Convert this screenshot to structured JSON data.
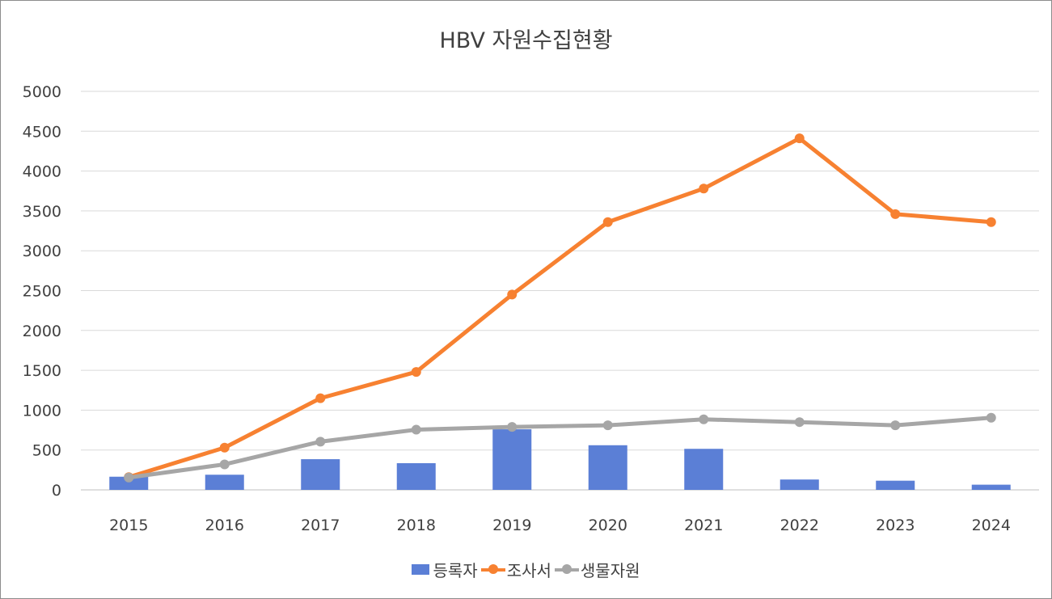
{
  "chart_data": {
    "type": "bar+line",
    "title": "HBV 자원수집현황",
    "categories": [
      "2015",
      "2016",
      "2017",
      "2018",
      "2019",
      "2020",
      "2021",
      "2022",
      "2023",
      "2024"
    ],
    "y_ticks": [
      "0",
      "500",
      "1000",
      "1500",
      "2000",
      "2500",
      "3000",
      "3500",
      "4000",
      "4500",
      "5000"
    ],
    "ylim": [
      0,
      5000
    ],
    "grid": true,
    "legend_position": "bottom",
    "series": [
      {
        "name": "등록자",
        "type": "bar",
        "color": "#5b7fd6",
        "values": [
          165,
          190,
          385,
          335,
          760,
          560,
          515,
          130,
          115,
          65
        ]
      },
      {
        "name": "조사서",
        "type": "line",
        "color": "#f78131",
        "values": [
          160,
          530,
          1150,
          1480,
          2450,
          3360,
          3780,
          4410,
          3460,
          3360
        ]
      },
      {
        "name": "생물자원",
        "type": "line",
        "color": "#a6a6a6",
        "values": [
          155,
          320,
          605,
          755,
          790,
          810,
          885,
          850,
          810,
          905
        ]
      }
    ]
  }
}
